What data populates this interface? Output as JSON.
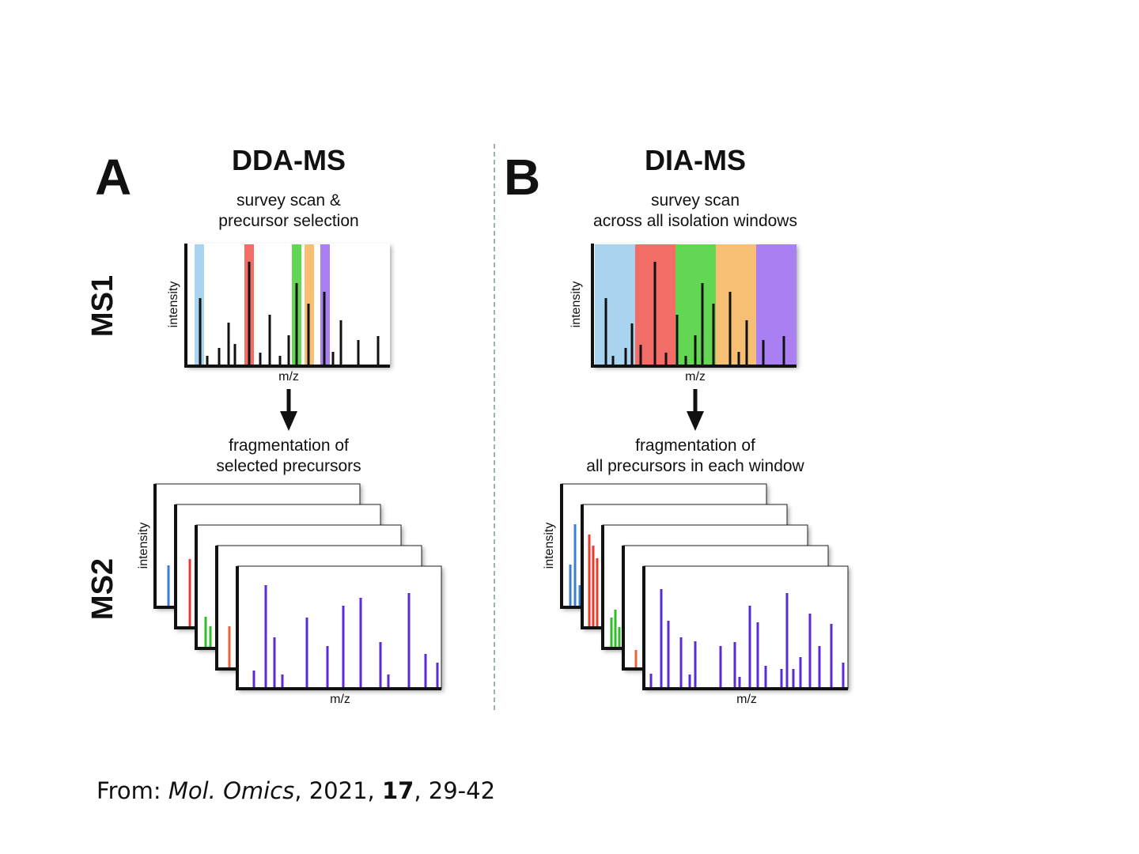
{
  "panel_a": {
    "letter": "A",
    "title": "DDA-MS",
    "survey_caption": [
      "survey scan &",
      "precursor selection"
    ],
    "fragment_caption": [
      "fragmentation of",
      "selected precursors"
    ]
  },
  "panel_b": {
    "letter": "B",
    "title": "DIA-MS",
    "survey_caption": [
      "survey scan",
      "across all isolation windows"
    ],
    "fragment_caption": [
      "fragmentation of",
      "all precursors in each window"
    ]
  },
  "row_labels": {
    "ms1": "MS1",
    "ms2": "MS2"
  },
  "axis_labels": {
    "x": "m/z",
    "y": "intensity"
  },
  "footer": {
    "prefix": "From: ",
    "journal": "Mol. Omics",
    "sep1": ", 2021, ",
    "volume": "17",
    "sep2": ", 29-42"
  },
  "colors": {
    "blue": "#a8d4f0",
    "red": "#f26d66",
    "green": "#63d653",
    "orange": "#f7bf74",
    "purple": "#a97ff2",
    "ms2_peak": "#5a2bd4",
    "axis": "#111111",
    "divider": "#9fb0b0"
  }
}
